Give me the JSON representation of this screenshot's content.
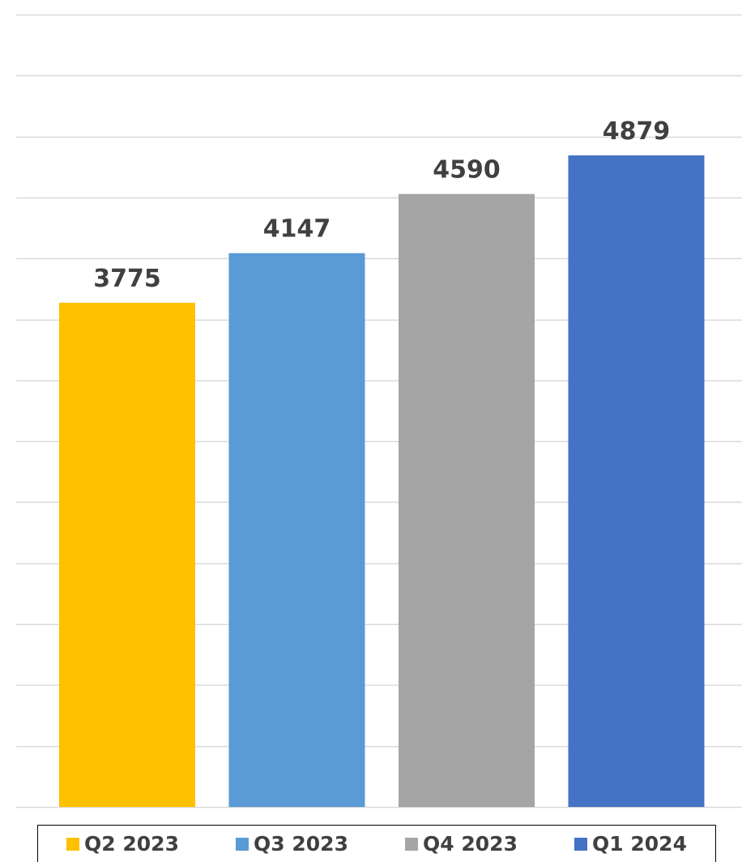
{
  "chart_data": {
    "type": "bar",
    "categories": [
      "Q2 2023",
      "Q3 2023",
      "Q4 2023",
      "Q1 2024"
    ],
    "values": [
      3775,
      4147,
      4590,
      4879
    ],
    "colors": [
      "#FFC000",
      "#5B9BD5",
      "#A5A5A5",
      "#4472C4"
    ],
    "data_labels": [
      "3775",
      "4147",
      "4590",
      "4879"
    ],
    "ylim": [
      0,
      6000
    ],
    "grid": true,
    "legend_position": "bottom",
    "title": "",
    "xlabel": "",
    "ylabel": ""
  }
}
